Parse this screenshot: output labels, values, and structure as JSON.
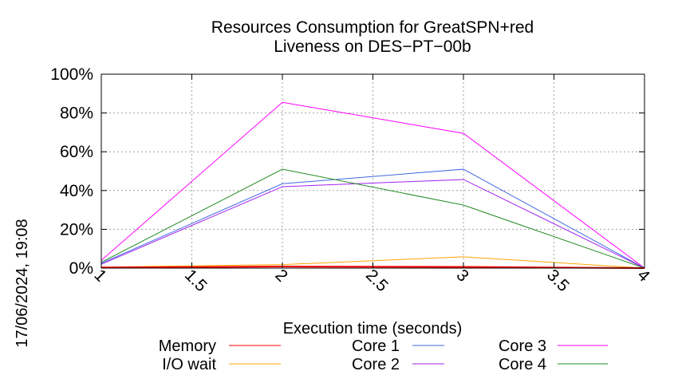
{
  "chart_data": {
    "type": "line",
    "title": "Resources Consumption for GreatSPN+red",
    "subtitle": "Liveness on DES−PT−00b",
    "xlabel": "Execution time (seconds)",
    "ylabel": "",
    "timestamp": "17/06/2024, 19:08",
    "xlim": [
      1,
      4
    ],
    "ylim": [
      0,
      100
    ],
    "x_ticks": [
      1,
      1.5,
      2,
      2.5,
      3,
      3.5,
      4
    ],
    "x_tick_labels": [
      "1",
      "1.5",
      "2",
      "2.5",
      "3",
      "3.5",
      "4"
    ],
    "y_ticks": [
      0,
      20,
      40,
      60,
      80,
      100
    ],
    "y_tick_labels": [
      "0%",
      "20%",
      "40%",
      "60%",
      "80%",
      "100%"
    ],
    "grid": true,
    "legend_position": "bottom",
    "x": [
      1,
      2,
      3,
      4
    ],
    "series": [
      {
        "name": "Memory",
        "color": "#ff0000",
        "values": [
          0.3,
          0.8,
          0.6,
          0
        ]
      },
      {
        "name": "I/O wait",
        "color": "#ffa500",
        "values": [
          0.5,
          1.8,
          5.8,
          0
        ]
      },
      {
        "name": "Core 1",
        "color": "#4169e1",
        "values": [
          2.5,
          43.5,
          51,
          0
        ]
      },
      {
        "name": "Core 2",
        "color": "#a020f0",
        "values": [
          2,
          42,
          45.7,
          0
        ]
      },
      {
        "name": "Core 3",
        "color": "#ff00ff",
        "values": [
          4,
          85.5,
          69.5,
          0
        ]
      },
      {
        "name": "Core 4",
        "color": "#228b22",
        "values": [
          3,
          51,
          32.5,
          0
        ]
      }
    ]
  }
}
